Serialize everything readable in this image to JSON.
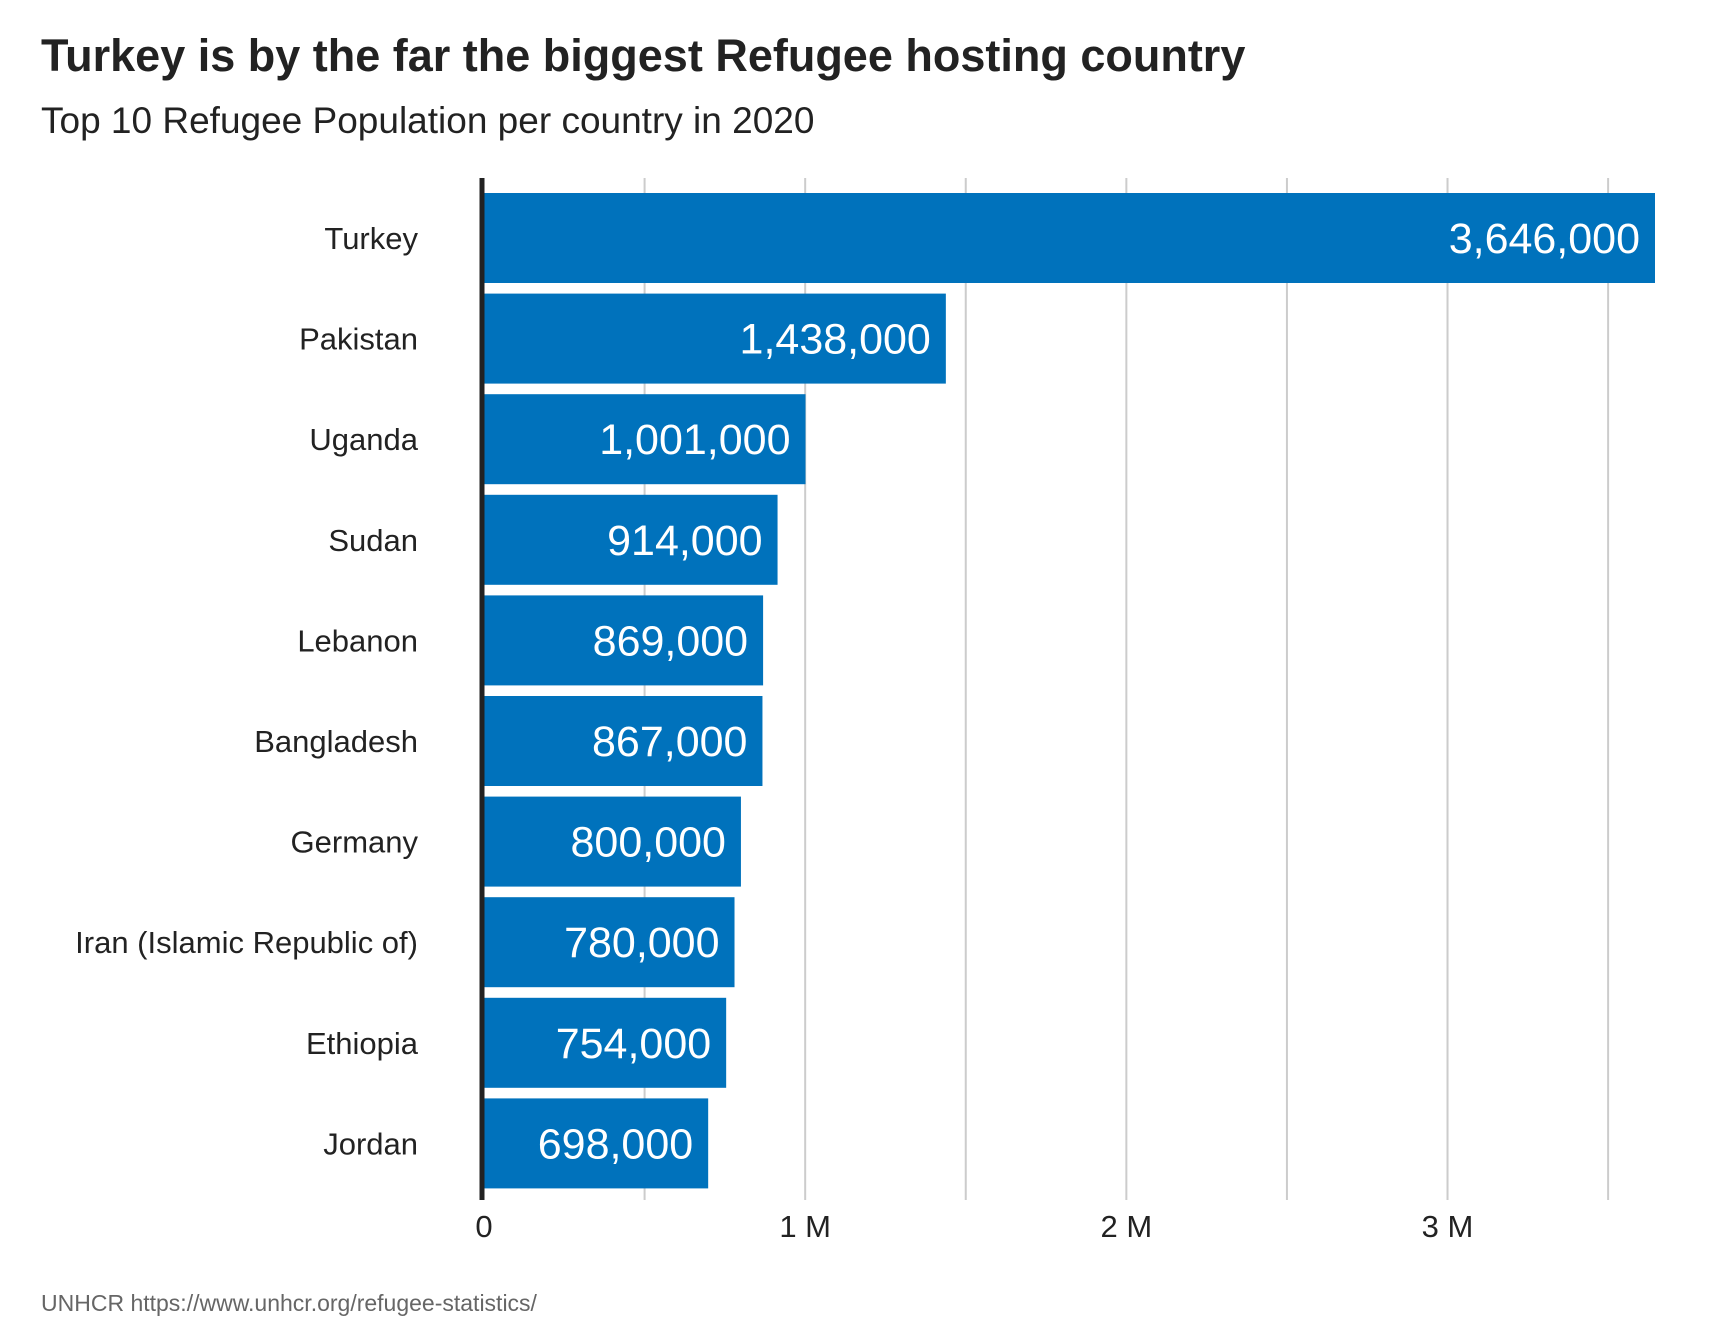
{
  "title": "Turkey is by the far the biggest Refugee hosting country",
  "subtitle": "Top 10 Refugee Population per country in 2020",
  "caption": "UNHCR https://www.unhcr.org/refugee-statistics/",
  "colors": {
    "bar": "#0072bc",
    "bar_label": "#ffffff",
    "grid": "#cccccc",
    "axis": "#222222",
    "text": "#222222"
  },
  "chart_data": {
    "type": "bar",
    "orientation": "horizontal",
    "title": "Turkey is by the far the biggest Refugee hosting country",
    "subtitle": "Top 10 Refugee Population per country in 2020",
    "categories": [
      "Turkey",
      "Pakistan",
      "Uganda",
      "Sudan",
      "Lebanon",
      "Bangladesh",
      "Germany",
      "Iran (Islamic Republic of)",
      "Ethiopia",
      "Jordan"
    ],
    "values": [
      3646000,
      1438000,
      1001000,
      914000,
      869000,
      867000,
      800000,
      780000,
      754000,
      698000
    ],
    "value_labels": [
      "3,646,000",
      "1,438,000",
      "1,001,000",
      "914,000",
      "869,000",
      "867,000",
      "800,000",
      "780,000",
      "754,000",
      "698,000"
    ],
    "xlim": [
      0,
      3646000
    ],
    "x_ticks": [
      0,
      1000000,
      2000000,
      3000000
    ],
    "x_tick_labels": [
      "0",
      "1 M",
      "2 M",
      "3 M"
    ],
    "minor_gridlines": [
      500000,
      1500000,
      2500000,
      3500000
    ],
    "grid": true,
    "legend": "none",
    "xlabel": "",
    "ylabel": ""
  }
}
